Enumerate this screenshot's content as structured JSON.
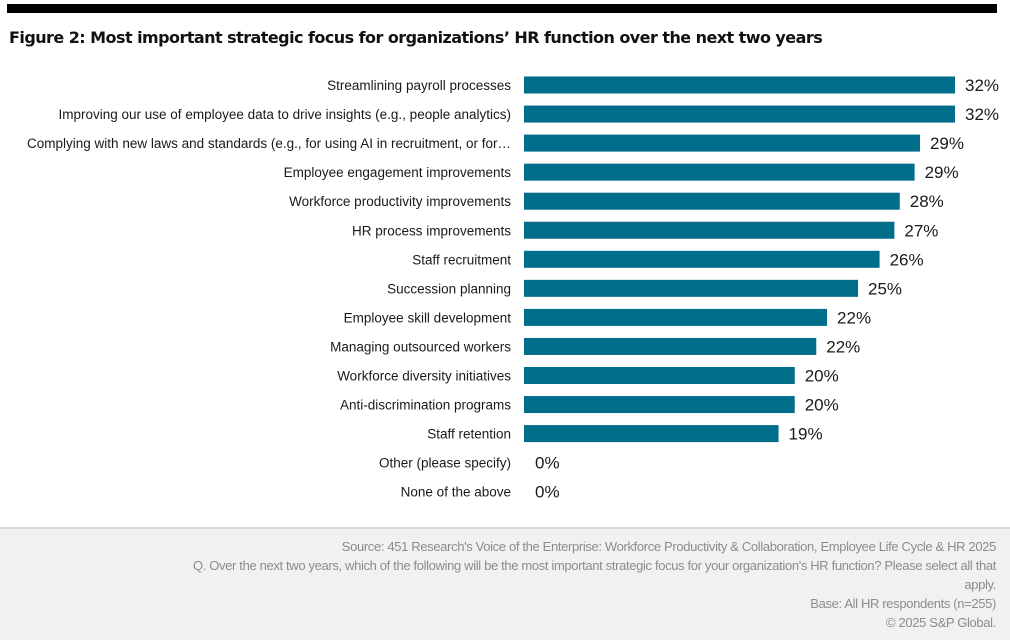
{
  "title": "Figure 2: Most important strategic focus for organizations’ HR function over the next two years",
  "colors": {
    "bar": "#006e8a",
    "text": "#1a1a1a",
    "footer_bg": "#f1f1f1",
    "footer_text": "#8c8c8c"
  },
  "chart_data": {
    "type": "bar",
    "orientation": "horizontal",
    "title": "Most important strategic focus for organizations’ HR function over the next two years",
    "xlabel": "",
    "ylabel": "",
    "xlim": [
      0,
      32
    ],
    "grid": false,
    "legend": "none",
    "value_suffix": "%",
    "categories": [
      "Streamlining payroll processes",
      "Improving our use of employee data to drive insights (e.g., people analytics)",
      "Complying with new laws and standards (e.g., for using AI in recruitment, or for…",
      "Employee engagement improvements",
      "Workforce productivity improvements",
      "HR process improvements",
      "Staff recruitment",
      "Succession planning",
      "Employee skill development",
      "Managing outsourced workers",
      "Workforce diversity initiatives",
      "Anti-discrimination programs",
      "Staff retention",
      "Other (please specify)",
      "None of the above"
    ],
    "values": [
      32,
      32,
      29,
      29,
      28,
      27,
      26,
      25,
      22,
      22,
      20,
      20,
      19,
      0,
      0
    ],
    "precise_values": [
      32.0,
      32.0,
      29.4,
      29.0,
      27.9,
      27.5,
      26.4,
      24.8,
      22.5,
      21.7,
      20.1,
      20.1,
      18.9,
      0,
      0
    ],
    "data_labels": [
      "32%",
      "32%",
      "29%",
      "29%",
      "28%",
      "27%",
      "26%",
      "25%",
      "22%",
      "22%",
      "20%",
      "20%",
      "19%",
      "0%",
      "0%"
    ]
  },
  "footer": {
    "source": "Source: 451 Research's Voice of the Enterprise: Workforce Productivity & Collaboration, Employee Life Cycle & HR 2025",
    "question_line1": "Q. Over the next two years, which of the following will be the most important strategic focus for your organization's HR function? Please select all that",
    "question_line2": "apply.",
    "base": "Base: All HR respondents (n=255)",
    "copyright": "© 2025 S&P Global."
  }
}
